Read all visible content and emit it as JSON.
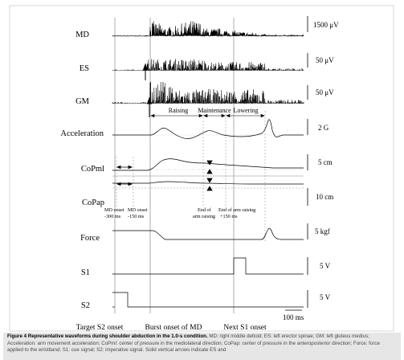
{
  "figure": {
    "channels": [
      {
        "label": "MD",
        "scale": "1500 μV"
      },
      {
        "label": "ES",
        "scale": "50 μV"
      },
      {
        "label": "GM",
        "scale": "50 μV"
      },
      {
        "label": "Acceleration",
        "scale": "2 G"
      },
      {
        "label": "CoPml",
        "scale": "5 cm"
      },
      {
        "label": "CoPap",
        "scale": "10 cm"
      },
      {
        "label": "Force",
        "scale": "5 kgf"
      },
      {
        "label": "S1",
        "scale": "5 V"
      },
      {
        "label": "S2",
        "scale": "5 V"
      }
    ],
    "phases": {
      "raising": "Raising",
      "maintenance": "Maintenance",
      "lowering": "Lowering"
    },
    "annotations": {
      "md_onset_300_l1": "MD onset",
      "md_onset_300_l2": "-300 ms",
      "md_onset_150_l1": "MD onset",
      "md_onset_150_l2": "-150 ms",
      "end_arm_raising_l1": "End of",
      "end_arm_raising_l2": "arm raising",
      "end_arm_raising_150_l1": "End of arm raising",
      "end_arm_raising_150_l2": "+150 ms"
    },
    "time_scale": "100 ms",
    "bottom_labels": {
      "target_s2": "Target S2 onset",
      "burst_onset": "Burst onset of MD",
      "next_s1": "Next S1 onset"
    }
  },
  "caption": {
    "title": "Figure 4 Representative waveforms during shoulder abduction in the 1.0-s condition.",
    "body": "MD: right middle deltoid; ES: left erector spinae; GM: left gluteus medius; Acceleration: arm movement acceleration; CoPml: center of pressure in the mediolateral direction; CoPap: center of pressure in the anteroposterior direction; Force: force applied to the wristband; S1: cue signal; S2: imperative signal. Solid vertical arrows indicate ES and"
  }
}
